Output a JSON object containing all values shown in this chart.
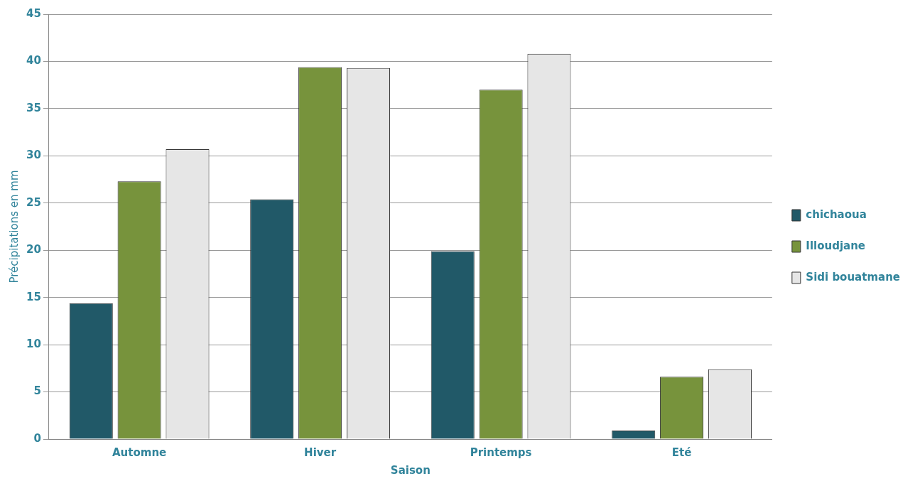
{
  "chart_data": {
    "type": "bar",
    "xlabel": "Saison",
    "ylabel": "Précipitations en mm",
    "categories": [
      "Automne",
      "Hiver",
      "Printemps",
      "Eté"
    ],
    "series": [
      {
        "name": "chichaoua",
        "color": "#215968",
        "values": [
          14.4,
          25.4,
          19.9,
          0.9
        ]
      },
      {
        "name": "Illoudjane",
        "color": "#77933c",
        "values": [
          27.3,
          39.4,
          37.0,
          6.6
        ]
      },
      {
        "name": "Sidi bouatmane",
        "color": "#e6e6e6",
        "values": [
          30.7,
          39.3,
          40.8,
          7.4
        ]
      }
    ],
    "ylim": [
      0,
      45
    ],
    "yticks": [
      0,
      5,
      10,
      15,
      20,
      25,
      30,
      35,
      40,
      45
    ],
    "grid": "y",
    "legend": "right"
  }
}
